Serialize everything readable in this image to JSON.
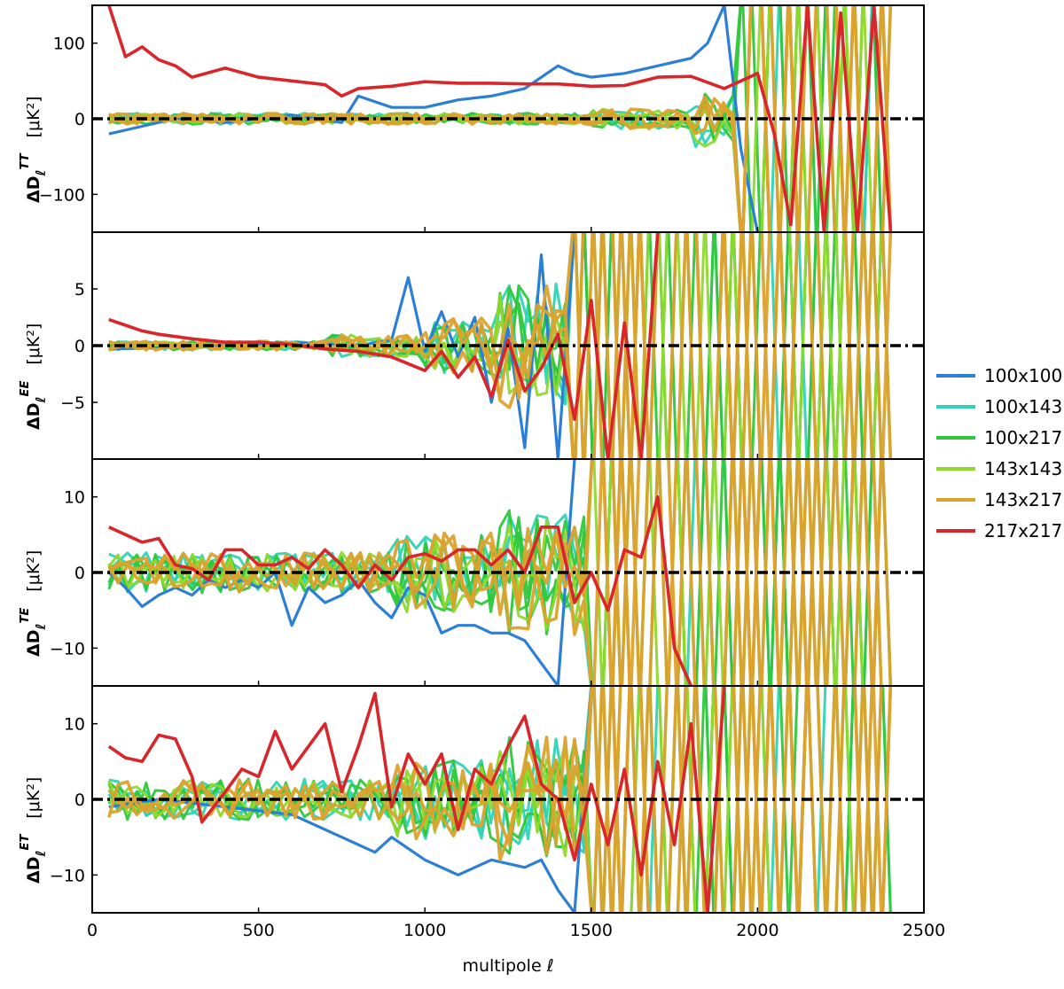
{
  "colors": {
    "100x100": "#2b7fd6",
    "100x143": "#2fd4b4",
    "100x217": "#2ec83a",
    "143x143": "#8fd82c",
    "143x217": "#dba22e",
    "217x217": "#d8262a"
  },
  "chart_data": {
    "type": "line",
    "xlabel": "multipole ℓ",
    "xlim": [
      0,
      2500
    ],
    "xticks": [
      0,
      500,
      1000,
      1500,
      2000,
      2500
    ],
    "legend": {
      "placement": "right",
      "entries": [
        "100x100",
        "100x143",
        "100x217",
        "143x143",
        "143x217",
        "217x217"
      ]
    },
    "reference_line": {
      "y": 0,
      "style": "dash-dot",
      "color": "#000000"
    },
    "panels": [
      {
        "id": "TT",
        "ylabel_main": "ΔD",
        "ylabel_sub": "ℓ",
        "ylabel_sup": "TT",
        "ylabel_unit": "[μK²]",
        "ylim": [
          -150,
          150
        ],
        "yticks": [
          -100,
          0,
          100
        ],
        "series": [
          {
            "name": "217x217",
            "x": [
              50,
              100,
              150,
              200,
              250,
              300,
              400,
              500,
              600,
              700,
              750,
              800,
              900,
              1000,
              1100,
              1200,
              1300,
              1400,
              1500,
              1600,
              1700,
              1800,
              1900,
              2000,
              2050,
              2100,
              2150,
              2200,
              2250,
              2300,
              2350,
              2400
            ],
            "y": [
              150,
              82,
              95,
              78,
              70,
              55,
              67,
              55,
              50,
              45,
              30,
              40,
              43,
              49,
              47,
              47,
              46,
              46,
              43,
              44,
              55,
              56,
              40,
              60,
              -20,
              -140,
              150,
              -150,
              140,
              -150,
              150,
              -150
            ]
          },
          {
            "name": "100x100",
            "x": [
              50,
              150,
              250,
              400,
              600,
              750,
              800,
              900,
              1000,
              1100,
              1200,
              1300,
              1400,
              1450,
              1500,
              1600,
              1700,
              1800,
              1850,
              1900,
              1950,
              2000
            ],
            "y": [
              -20,
              -10,
              0,
              -5,
              5,
              -5,
              30,
              15,
              15,
              25,
              30,
              40,
              70,
              60,
              55,
              60,
              70,
              80,
              100,
              150,
              -40,
              -150
            ]
          }
        ]
      },
      {
        "id": "EE",
        "ylabel_main": "ΔD",
        "ylabel_sub": "ℓ",
        "ylabel_sup": "EE",
        "ylabel_unit": "[μK²]",
        "ylim": [
          -10,
          10
        ],
        "yticks": [
          -5,
          0,
          5
        ],
        "series": [
          {
            "name": "217x217",
            "x": [
              50,
              100,
              150,
              200,
              300,
              400,
              500,
              600,
              700,
              800,
              900,
              1000,
              1050,
              1100,
              1150,
              1200,
              1250,
              1300,
              1350,
              1400,
              1450,
              1500,
              1550,
              1600,
              1650,
              1700
            ],
            "y": [
              2.3,
              1.8,
              1.3,
              1.0,
              0.6,
              0.3,
              0.3,
              0.1,
              -0.3,
              -0.5,
              -1.0,
              -2.2,
              -0.5,
              -2.8,
              -1.0,
              -4.5,
              0.5,
              -4.0,
              -2.0,
              1.0,
              -6.5,
              4.0,
              -10,
              2.0,
              -10,
              10
            ]
          },
          {
            "name": "100x100",
            "x": [
              50,
              200,
              400,
              600,
              800,
              900,
              950,
              1000,
              1050,
              1100,
              1150,
              1200,
              1250,
              1300,
              1350,
              1400,
              1450
            ],
            "y": [
              -0.3,
              -0.2,
              0.0,
              0.3,
              0.0,
              0.5,
              6.0,
              -0.5,
              3.0,
              -1.0,
              2.5,
              -5.0,
              1.5,
              -9.0,
              8.0,
              -10,
              10
            ]
          }
        ]
      },
      {
        "id": "TE",
        "ylabel_main": "ΔD",
        "ylabel_sub": "ℓ",
        "ylabel_sup": "TE",
        "ylabel_unit": "[μK²]",
        "ylim": [
          -15,
          15
        ],
        "yticks": [
          -10,
          0,
          10
        ],
        "series": [
          {
            "name": "217x217",
            "x": [
              50,
              100,
              150,
              200,
              250,
              300,
              350,
              400,
              450,
              500,
              550,
              600,
              650,
              700,
              750,
              800,
              850,
              900,
              950,
              1000,
              1050,
              1100,
              1150,
              1200,
              1250,
              1300,
              1350,
              1400,
              1450,
              1500,
              1550,
              1600,
              1650,
              1700,
              1750,
              1800
            ],
            "y": [
              6.0,
              5.0,
              4.0,
              4.5,
              1.0,
              0.5,
              -1.0,
              3.0,
              3.0,
              1.0,
              1.0,
              2.0,
              0.5,
              3.0,
              1.0,
              -2.0,
              1.0,
              -1.0,
              2.0,
              2.5,
              1.5,
              3.0,
              3.0,
              1.0,
              3.0,
              0.0,
              6.0,
              6.0,
              -4.0,
              0.0,
              -5.0,
              3.0,
              2.0,
              10.0,
              -10.0,
              -15.0
            ]
          },
          {
            "name": "100x100",
            "x": [
              50,
              100,
              150,
              200,
              250,
              300,
              350,
              400,
              450,
              500,
              550,
              600,
              650,
              700,
              750,
              800,
              850,
              900,
              950,
              1000,
              1050,
              1100,
              1150,
              1200,
              1250,
              1300,
              1350,
              1400,
              1450
            ],
            "y": [
              0,
              -2,
              -4.5,
              -3,
              -2,
              -3,
              -1,
              -2,
              -1,
              -2,
              0,
              -7,
              -2,
              -4,
              -3,
              -1,
              -4,
              -6,
              -2,
              -3,
              -8,
              -7,
              -7,
              -8,
              -8,
              -9,
              -12,
              -15,
              15
            ]
          }
        ]
      },
      {
        "id": "ET",
        "ylabel_main": "ΔD",
        "ylabel_sub": "ℓ",
        "ylabel_sup": "ET",
        "ylabel_unit": "[μK²]",
        "ylim": [
          -15,
          15
        ],
        "yticks": [
          -10,
          0,
          10
        ],
        "series": [
          {
            "name": "217x217",
            "x": [
              50,
              100,
              150,
              200,
              250,
              300,
              330,
              400,
              450,
              500,
              550,
              600,
              650,
              700,
              750,
              800,
              850,
              900,
              950,
              1000,
              1050,
              1100,
              1150,
              1200,
              1250,
              1300,
              1350,
              1400,
              1450,
              1500,
              1550,
              1600,
              1650,
              1700,
              1750,
              1800,
              1850,
              1900
            ],
            "y": [
              7,
              5.5,
              5,
              8.5,
              8,
              3,
              -3,
              1,
              4,
              3,
              9,
              4,
              7,
              10,
              1,
              7,
              14,
              -1,
              6,
              2,
              6,
              -4,
              4,
              2,
              7,
              11,
              2,
              0,
              -8,
              2,
              -6,
              4,
              -10,
              5,
              -6,
              10,
              -15,
              15
            ]
          },
          {
            "name": "100x100",
            "x": [
              50,
              200,
              400,
              600,
              800,
              850,
              900,
              1000,
              1100,
              1200,
              1300,
              1350,
              1400,
              1450,
              1500
            ],
            "y": [
              -1,
              0,
              -1,
              -2,
              -6,
              -7,
              -5,
              -8,
              -10,
              -8,
              -9,
              -8,
              -12,
              -15,
              15
            ]
          }
        ]
      }
    ]
  }
}
